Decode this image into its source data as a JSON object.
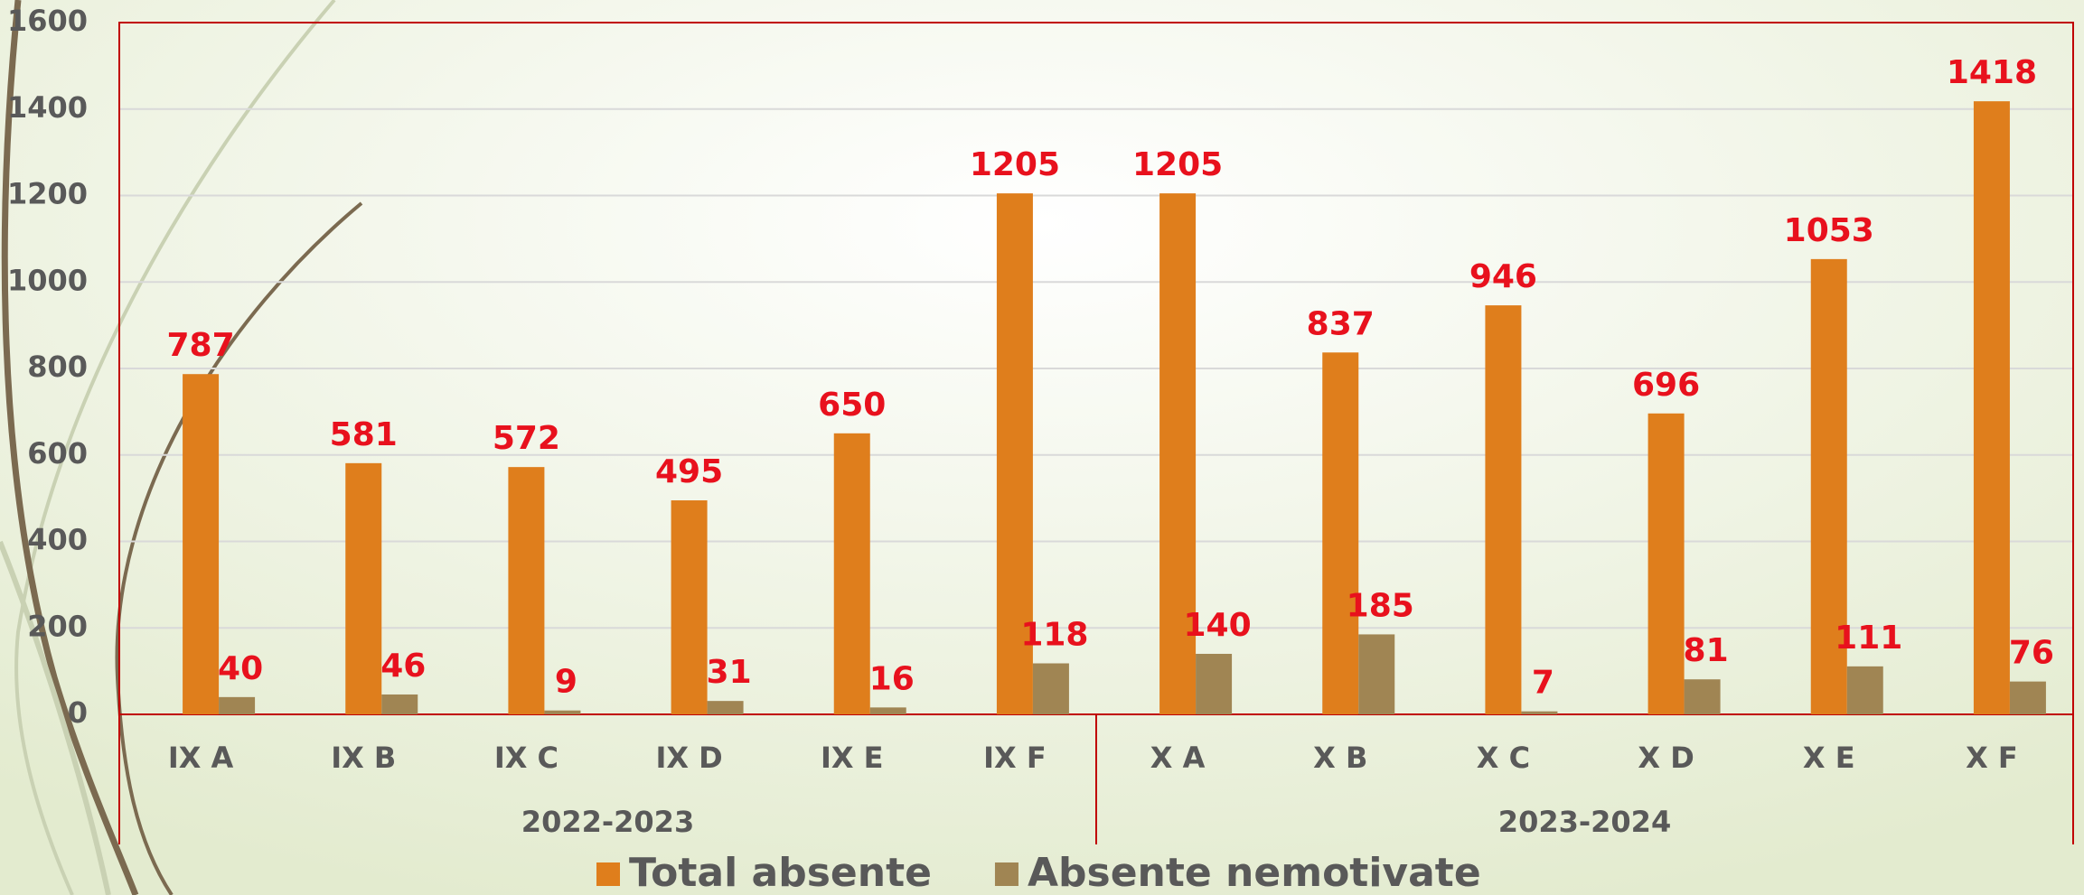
{
  "chart_data": {
    "type": "bar",
    "categories": [
      "IX A",
      "IX B",
      "IX C",
      "IX D",
      "IX E",
      "IX F",
      "X A",
      "X B",
      "X C",
      "X D",
      "X E",
      "X F"
    ],
    "groups": [
      "2022-2023",
      "2023-2024"
    ],
    "series": [
      {
        "name": "Total absente",
        "color": "#df7e1c",
        "values": [
          787,
          581,
          572,
          495,
          650,
          1205,
          1205,
          837,
          946,
          696,
          1053,
          1418
        ]
      },
      {
        "name": "Absente nemotivate",
        "color": "#a08553",
        "values": [
          40,
          46,
          9,
          31,
          16,
          118,
          140,
          185,
          7,
          81,
          111,
          76
        ]
      }
    ],
    "ylim": [
      0,
      1600
    ],
    "yticks": [
      0,
      200,
      400,
      600,
      800,
      1000,
      1200,
      1400,
      1600
    ],
    "grid": true
  }
}
